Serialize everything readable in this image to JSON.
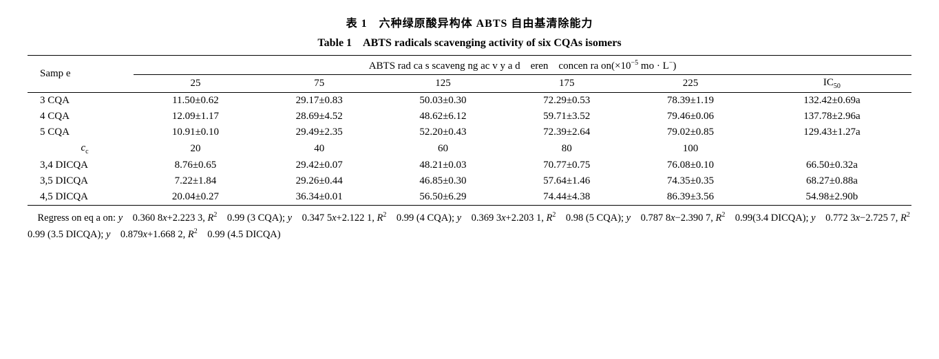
{
  "titles": {
    "cn": "表 1　六种绿原酸异构体 ABTS 自由基清除能力",
    "en": "Table 1　ABTS radicals scavenging activity of six CQAs isomers"
  },
  "header": {
    "sample": "Samp e",
    "spanner_prefix": "ABTS rad ca s scaveng ng ac v y a d　eren　concen ra on(×10",
    "spanner_exp": "−5",
    "spanner_suffix": " mo · L",
    "spanner_exp2": "−",
    "spanner_tail": ")",
    "cols1": [
      "25",
      "75",
      "125",
      "175",
      "225"
    ],
    "ic50_label_pre": "IC",
    "ic50_label_sub": "50"
  },
  "rows_top": [
    {
      "sample": "3 CQA",
      "cells": [
        "11.50±0.62",
        "29.17±0.83",
        "50.03±0.30",
        "72.29±0.53",
        "78.39±1.19",
        "132.42±0.69a"
      ]
    },
    {
      "sample": "4 CQA",
      "cells": [
        "12.09±1.17",
        "28.69±4.52",
        "48.62±6.12",
        "59.71±3.52",
        "79.46±0.06",
        "137.78±2.96a"
      ]
    },
    {
      "sample": "5 CQA",
      "cells": [
        "10.91±0.10",
        "29.49±2.35",
        "52.20±0.43",
        "72.39±2.64",
        "79.02±0.85",
        "129.43±1.27a"
      ]
    }
  ],
  "mid_row": {
    "label_html": "c",
    "label_sub": "c",
    "cells": [
      "20",
      "40",
      "60",
      "80",
      "100",
      ""
    ]
  },
  "rows_bot": [
    {
      "sample": "3,4 DICQA",
      "cells": [
        "8.76±0.65",
        "29.42±0.07",
        "48.21±0.03",
        "70.77±0.75",
        "76.08±0.10",
        "66.50±0.32a"
      ]
    },
    {
      "sample": "3,5 DICQA",
      "cells": [
        "7.22±1.84",
        "29.26±0.44",
        "46.85±0.30",
        "57.64±1.46",
        "74.35±0.35",
        "68.27±0.88a"
      ]
    },
    {
      "sample": "4,5 DICQA",
      "cells": [
        "20.04±0.27",
        "36.34±0.01",
        "56.50±6.29",
        "74.44±4.38",
        "86.39±3.56",
        "54.98±2.90b"
      ]
    }
  ],
  "footnote": {
    "parts": [
      "Regress on eq a on: ",
      {
        "i": "y"
      },
      "　0.360 8",
      {
        "i": "x"
      },
      "+2.223 3, ",
      {
        "i": "R"
      },
      {
        "sup": "2"
      },
      "　0.99 (3 CQA); ",
      {
        "i": "y"
      },
      "　0.347 5",
      {
        "i": "x"
      },
      "+2.122 1, ",
      {
        "i": "R"
      },
      {
        "sup": "2"
      },
      "　0.99 (4 CQA); ",
      {
        "i": "y"
      },
      "　0.369 3",
      {
        "i": "x"
      },
      "+2.203 1, ",
      {
        "i": "R"
      },
      {
        "sup": "2"
      },
      "　0.98 (5 CQA); ",
      {
        "i": "y"
      },
      "　0.787 8",
      {
        "i": "x"
      },
      "−2.390 7, ",
      {
        "i": "R"
      },
      {
        "sup": "2"
      },
      "　0.99(3.4 DICQA); ",
      {
        "i": "y"
      },
      "　0.772 3",
      {
        "i": "x"
      },
      "−2.725 7, ",
      {
        "i": "R"
      },
      {
        "sup": "2"
      },
      "　0.99 (3.5 DICQA); ",
      {
        "i": "y"
      },
      "　0.879",
      {
        "i": "x"
      },
      "+1.668 2, ",
      {
        "i": "R"
      },
      {
        "sup": "2"
      },
      "　0.99 (4.5 DICQA)"
    ]
  }
}
